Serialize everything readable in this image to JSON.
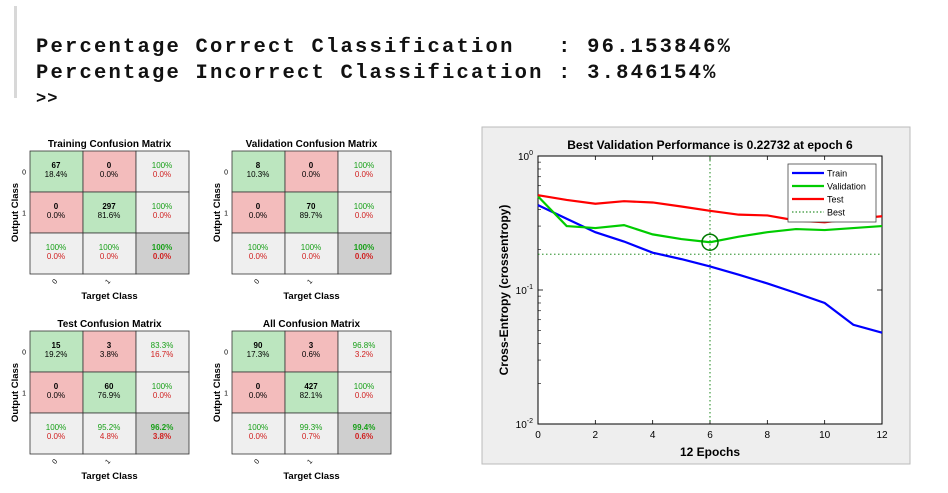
{
  "console": {
    "lines": [
      "Percentage Correct Classification   : 96.153846%",
      "Percentage Incorrect Classification : 3.846154%"
    ],
    "prompt": ">>"
  },
  "chart_data": [
    {
      "type": "heatmap",
      "title": "Training Confusion Matrix",
      "xlabel": "Target Class",
      "ylabel": "Output Class",
      "row_labels": [
        "0",
        "1"
      ],
      "col_labels": [
        "0",
        "1"
      ],
      "cells": [
        [
          {
            "count": "67",
            "pct": "18.4%"
          },
          {
            "count": "0",
            "pct": "0.0%"
          }
        ],
        [
          {
            "count": "0",
            "pct": "0.0%"
          },
          {
            "count": "297",
            "pct": "81.6%"
          }
        ]
      ],
      "row_summary": [
        [
          "100%",
          "0.0%"
        ],
        [
          "100%",
          "0.0%"
        ]
      ],
      "col_summary": [
        [
          "100%",
          "0.0%"
        ],
        [
          "100%",
          "0.0%"
        ]
      ],
      "total": [
        "100%",
        "0.0%"
      ]
    },
    {
      "type": "heatmap",
      "title": "Validation Confusion Matrix",
      "xlabel": "Target Class",
      "ylabel": "Output Class",
      "row_labels": [
        "0",
        "1"
      ],
      "col_labels": [
        "0",
        "1"
      ],
      "cells": [
        [
          {
            "count": "8",
            "pct": "10.3%"
          },
          {
            "count": "0",
            "pct": "0.0%"
          }
        ],
        [
          {
            "count": "0",
            "pct": "0.0%"
          },
          {
            "count": "70",
            "pct": "89.7%"
          }
        ]
      ],
      "row_summary": [
        [
          "100%",
          "0.0%"
        ],
        [
          "100%",
          "0.0%"
        ]
      ],
      "col_summary": [
        [
          "100%",
          "0.0%"
        ],
        [
          "100%",
          "0.0%"
        ]
      ],
      "total": [
        "100%",
        "0.0%"
      ]
    },
    {
      "type": "heatmap",
      "title": "Test Confusion Matrix",
      "xlabel": "Target Class",
      "ylabel": "Output Class",
      "row_labels": [
        "0",
        "1"
      ],
      "col_labels": [
        "0",
        "1"
      ],
      "cells": [
        [
          {
            "count": "15",
            "pct": "19.2%"
          },
          {
            "count": "3",
            "pct": "3.8%"
          }
        ],
        [
          {
            "count": "0",
            "pct": "0.0%"
          },
          {
            "count": "60",
            "pct": "76.9%"
          }
        ]
      ],
      "row_summary": [
        [
          "83.3%",
          "16.7%"
        ],
        [
          "100%",
          "0.0%"
        ]
      ],
      "col_summary": [
        [
          "100%",
          "0.0%"
        ],
        [
          "95.2%",
          "4.8%"
        ]
      ],
      "total": [
        "96.2%",
        "3.8%"
      ]
    },
    {
      "type": "heatmap",
      "title": "All Confusion Matrix",
      "xlabel": "Target Class",
      "ylabel": "Output Class",
      "row_labels": [
        "0",
        "1"
      ],
      "col_labels": [
        "0",
        "1"
      ],
      "cells": [
        [
          {
            "count": "90",
            "pct": "17.3%"
          },
          {
            "count": "3",
            "pct": "0.6%"
          }
        ],
        [
          {
            "count": "0",
            "pct": "0.0%"
          },
          {
            "count": "427",
            "pct": "82.1%"
          }
        ]
      ],
      "row_summary": [
        [
          "96.8%",
          "3.2%"
        ],
        [
          "100%",
          "0.0%"
        ]
      ],
      "col_summary": [
        [
          "100%",
          "0.0%"
        ],
        [
          "99.3%",
          "0.7%"
        ]
      ],
      "total": [
        "99.4%",
        "0.6%"
      ]
    },
    {
      "type": "line",
      "title": "Best Validation Performance is 0.22732 at epoch 6",
      "xlabel": "12 Epochs",
      "ylabel": "Cross-Entropy  (crossentropy)",
      "xlim": [
        0,
        12
      ],
      "ylim": [
        0.01,
        1
      ],
      "yscale": "log",
      "xticks": [
        "0",
        "2",
        "4",
        "6",
        "8",
        "10",
        "12"
      ],
      "yticks": [
        "10^0",
        "10^-1",
        "10^-2"
      ],
      "x": [
        0,
        1,
        2,
        3,
        4,
        5,
        6,
        7,
        8,
        9,
        10,
        11,
        12
      ],
      "series": [
        {
          "name": "Train",
          "color": "#0000ff",
          "values": [
            0.43,
            0.34,
            0.27,
            0.23,
            0.19,
            0.17,
            0.15,
            0.13,
            0.112,
            0.095,
            0.08,
            0.055,
            0.048
          ]
        },
        {
          "name": "Validation",
          "color": "#00cc00",
          "values": [
            0.5,
            0.3,
            0.29,
            0.305,
            0.26,
            0.24,
            0.22732,
            0.25,
            0.27,
            0.285,
            0.28,
            0.29,
            0.3
          ]
        },
        {
          "name": "Test",
          "color": "#ff0000",
          "values": [
            0.51,
            0.47,
            0.44,
            0.46,
            0.45,
            0.42,
            0.39,
            0.365,
            0.36,
            0.33,
            0.32,
            0.34,
            0.355
          ]
        }
      ],
      "best": {
        "name": "Best",
        "epoch": 6,
        "value": 0.22732
      },
      "legend_position": "top-right",
      "grid": false
    }
  ]
}
